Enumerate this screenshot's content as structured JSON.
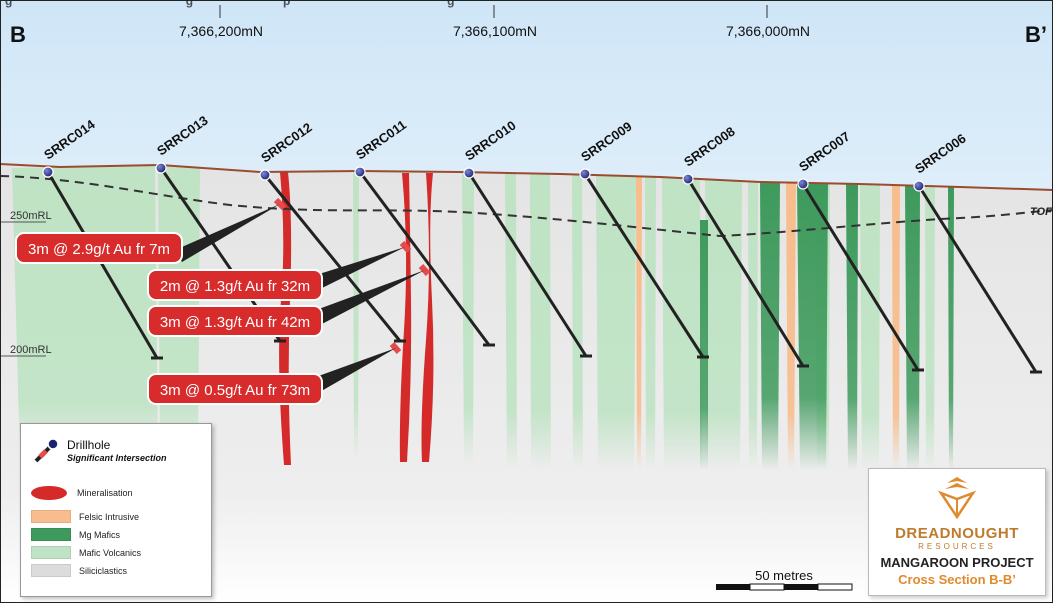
{
  "header": {
    "left_label": "B",
    "right_label": "B’",
    "northings": [
      "7,366,200mN",
      "7,366,100mN",
      "7,366,000mN"
    ],
    "top_caption_fragment": "g                                                    g                           p                                               g"
  },
  "rl_labels": [
    "250mRL",
    "200mRL"
  ],
  "right_edge_label": "TOFI",
  "drillholes": [
    "SRRC014",
    "SRRC013",
    "SRRC012",
    "SRRC011",
    "SRRC010",
    "SRRC009",
    "SRRC008",
    "SRRC007",
    "SRRC006"
  ],
  "intersections": [
    "3m @ 2.9g/t Au fr 7m",
    "2m @ 1.3g/t Au fr 32m",
    "3m @ 1.3g/t Au fr 42m",
    "3m @ 0.5g/t Au fr 73m"
  ],
  "legend": {
    "drillhole_title": "Drillhole",
    "drillhole_subtitle": "Significant Intersection",
    "mineralisation": "Mineralisation",
    "felsic": "Felsic Intrusive",
    "mg_mafics": "Mg Mafics",
    "mafic_volcanics": "Mafic Volcanics",
    "siliciclastics": "Siliciclastics"
  },
  "colors": {
    "mineralisation": "#d42a2a",
    "felsic": "#f7bd8c",
    "mg_mafics": "#3e9a5c",
    "mafic_volcanics": "#bfe3c4",
    "siliciclastics": "#dcdcdc",
    "sky_top": "#cfe6f7",
    "callout": "#d82b2b",
    "brand_orange": "#e08a2e"
  },
  "scale_bar": "50 metres",
  "logo": {
    "company": "DREADNOUGHT",
    "company_sub": "RESOURCES",
    "project": "MANGAROON PROJECT",
    "section": "Cross Section B-B’"
  }
}
